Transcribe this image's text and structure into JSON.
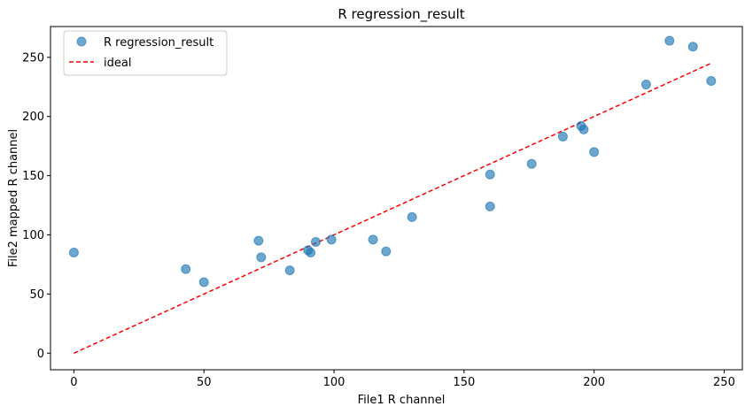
{
  "chart_data": {
    "type": "scatter",
    "title": "R regression_result",
    "xlabel": "File1 R channel",
    "ylabel": "File2 mapped R channel",
    "xlim": [
      -9,
      257
    ],
    "ylim": [
      -14,
      276
    ],
    "xticks": [
      0,
      50,
      100,
      150,
      200,
      250
    ],
    "yticks": [
      0,
      50,
      100,
      150,
      200,
      250
    ],
    "grid": false,
    "legend_position": "top-left",
    "series": [
      {
        "name": "R regression_result",
        "kind": "scatter",
        "color": "#1f77b4",
        "alpha": 0.65,
        "x": [
          0,
          43,
          50,
          71,
          72,
          83,
          90,
          91,
          93,
          99,
          115,
          120,
          130,
          160,
          160,
          176,
          188,
          195,
          196,
          200,
          220,
          229,
          238,
          245
        ],
        "y": [
          85,
          71,
          60,
          95,
          81,
          70,
          87,
          85,
          94,
          96,
          96,
          86,
          115,
          151,
          124,
          160,
          183,
          192,
          189,
          170,
          227,
          264,
          259,
          230
        ]
      },
      {
        "name": "ideal",
        "kind": "line",
        "style": "dashed",
        "color": "#ff0000",
        "x": [
          0,
          245
        ],
        "y": [
          0,
          245
        ]
      }
    ]
  }
}
